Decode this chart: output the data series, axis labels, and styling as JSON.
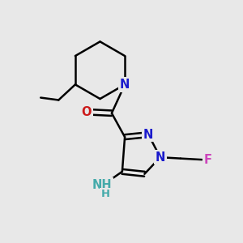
{
  "background_color": "#e8e8e8",
  "bond_color": "#000000",
  "bond_width": 1.8,
  "n_color": "#1a1acc",
  "o_color": "#cc1a1a",
  "f_color": "#cc44bb",
  "nh2_color": "#44aaaa",
  "font_size": 10.5,
  "fig_size": [
    3.0,
    3.0
  ],
  "dpi": 100,
  "xlim": [
    0,
    10
  ],
  "ylim": [
    0,
    10
  ]
}
